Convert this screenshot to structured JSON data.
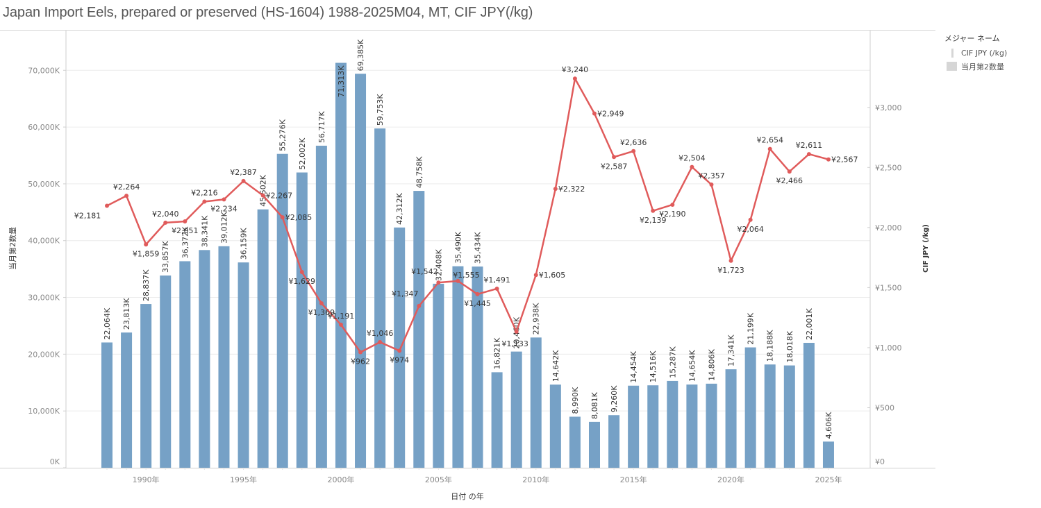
{
  "title": "Japan Import Eels, prepared or preserved (HS-1604) 1988-2025M04, MT, CIF JPY(/kg)",
  "legend": {
    "title": "メジャー ネーム",
    "items": [
      {
        "label": "CIF JPY (/kg)",
        "swatch": "line"
      },
      {
        "label": "当月第2数量",
        "swatch": "box"
      }
    ]
  },
  "colors": {
    "bar": "#76a1c6",
    "line": "#e05b5b",
    "grid": "#ececec",
    "axis": "#cfcfcf"
  },
  "chart_data": {
    "type": "bar+line",
    "title": "Japan Import Eels, prepared or preserved (HS-1604) 1988-2025M04, MT, CIF JPY(/kg)",
    "xlabel": "日付 の年",
    "ylabel_left": "当月第2数量",
    "ylabel_right": "CIF JPY (/kg)",
    "x": [
      1988,
      1989,
      1990,
      1991,
      1992,
      1993,
      1994,
      1995,
      1996,
      1997,
      1998,
      1999,
      2000,
      2001,
      2002,
      2003,
      2004,
      2005,
      2006,
      2007,
      2008,
      2009,
      2010,
      2011,
      2012,
      2013,
      2014,
      2015,
      2016,
      2017,
      2018,
      2019,
      2020,
      2021,
      2022,
      2023,
      2024,
      2025
    ],
    "x_ticks": [
      {
        "value": 1990,
        "label": "1990年"
      },
      {
        "value": 1995,
        "label": "1995年"
      },
      {
        "value": 2000,
        "label": "2000年"
      },
      {
        "value": 2005,
        "label": "2005年"
      },
      {
        "value": 2010,
        "label": "2010年"
      },
      {
        "value": 2015,
        "label": "2015年"
      },
      {
        "value": 2020,
        "label": "2020年"
      },
      {
        "value": 2025,
        "label": "2025年"
      }
    ],
    "y_left": {
      "range": [
        0,
        77000
      ],
      "ticks": [
        {
          "value": 0,
          "label": "0K"
        },
        {
          "value": 10000,
          "label": "10,000K"
        },
        {
          "value": 20000,
          "label": "20,000K"
        },
        {
          "value": 30000,
          "label": "30,000K"
        },
        {
          "value": 40000,
          "label": "40,000K"
        },
        {
          "value": 50000,
          "label": "50,000K"
        },
        {
          "value": 60000,
          "label": "60,000K"
        },
        {
          "value": 70000,
          "label": "70,000K"
        }
      ]
    },
    "y_right": {
      "range": [
        0,
        3640
      ],
      "ticks": [
        {
          "value": 0,
          "label": "¥0"
        },
        {
          "value": 500,
          "label": "¥500"
        },
        {
          "value": 1000,
          "label": "¥1,000"
        },
        {
          "value": 1500,
          "label": "¥1,500"
        },
        {
          "value": 2000,
          "label": "¥2,000"
        },
        {
          "value": 2500,
          "label": "¥2,500"
        },
        {
          "value": 3000,
          "label": "¥3,000"
        }
      ]
    },
    "grid": true,
    "legend_position": "top-right",
    "series": [
      {
        "name": "当月第2数量",
        "type": "bar",
        "axis": "left",
        "values": [
          22064,
          23813,
          28837,
          33857,
          36372,
          38341,
          39012,
          36159,
          45502,
          55276,
          52002,
          56717,
          71313,
          69385,
          59753,
          42312,
          48758,
          32408,
          35490,
          35434,
          16821,
          20460,
          22938,
          14642,
          8990,
          8081,
          9260,
          14454,
          14516,
          15287,
          14654,
          14806,
          17341,
          21199,
          18188,
          18018,
          22001,
          4606
        ],
        "labels": [
          "22,064K",
          "23,813K",
          "28,837K",
          "33,857K",
          "36,372K",
          "38,341K",
          "39,012K",
          "36,159K",
          "45,502K",
          "55,276K",
          "52,002K",
          "56,717K",
          "71,313K",
          "69,385K",
          "59,753K",
          "42,312K",
          "48,758K",
          "32,408K",
          "35,490K",
          "35,434K",
          "16,821K",
          "20,460K",
          "22,938K",
          "14,642K",
          "8,990K",
          "8,081K",
          "9,260K",
          "14,454K",
          "14,516K",
          "15,287K",
          "14,654K",
          "14,806K",
          "17,341K",
          "21,199K",
          "18,188K",
          "18,018K",
          "22,001K",
          "4,606K"
        ]
      },
      {
        "name": "CIF JPY (/kg)",
        "type": "line",
        "axis": "right",
        "values": [
          2181,
          2264,
          1859,
          2040,
          2051,
          2216,
          2234,
          2387,
          2267,
          2085,
          1629,
          1369,
          1191,
          962,
          1046,
          974,
          1347,
          1542,
          1555,
          1445,
          1491,
          1133,
          1605,
          2322,
          3240,
          2949,
          2587,
          2636,
          2139,
          2190,
          2504,
          2357,
          1723,
          2064,
          2654,
          2466,
          2611,
          2567
        ],
        "labels": [
          "¥2,181",
          "¥2,264",
          "¥1,859",
          "¥2,040",
          "¥2,051",
          "¥2,216",
          "¥2,234",
          "¥2,387",
          "¥2,267",
          "¥2,085",
          "¥1,629",
          "¥1,369",
          "¥1,191",
          "¥962",
          "¥1,046",
          "¥974",
          "¥1,347",
          "¥1,542",
          "¥1,555",
          "¥1,445",
          "¥1,491",
          "¥1,133",
          "¥1,605",
          "¥2,322",
          "¥3,240",
          "¥2,949",
          "¥2,587",
          "¥2,636",
          "¥2,139",
          "¥2,190",
          "¥2,504",
          "¥2,357",
          "¥1,723",
          "¥2,064",
          "¥2,654",
          "¥2,466",
          "¥2,611",
          "¥2,567"
        ]
      }
    ]
  }
}
